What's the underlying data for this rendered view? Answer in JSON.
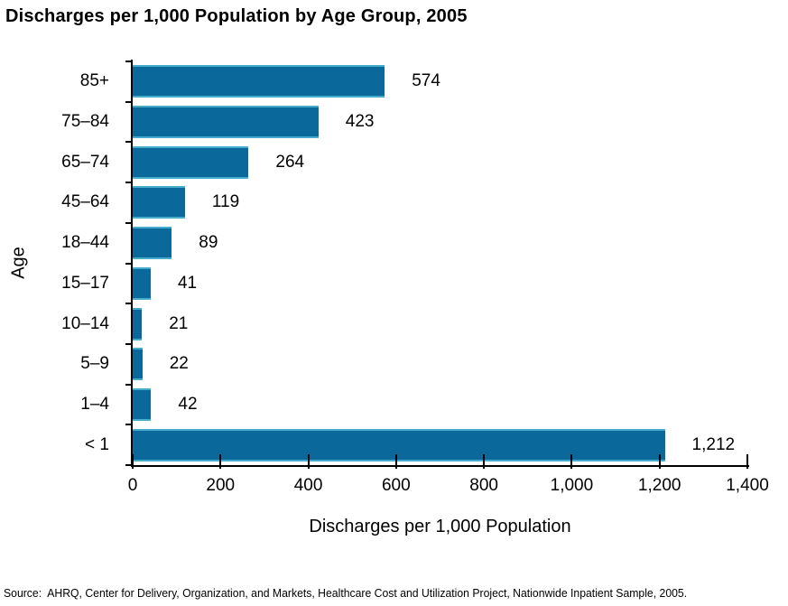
{
  "title": "Discharges per 1,000 Population by Age Group, 2005",
  "chart_data": {
    "type": "bar",
    "orientation": "horizontal",
    "title": "Discharges per 1,000 Population by Age Group, 2005",
    "categories": [
      "85+",
      "75–84",
      "65–74",
      "45–64",
      "18–44",
      "15–17",
      "10–14",
      "5–9",
      "1–4",
      "< 1"
    ],
    "values": [
      574,
      423,
      264,
      119,
      89,
      41,
      21,
      22,
      42,
      1212
    ],
    "value_labels": [
      "574",
      "423",
      "264",
      "119",
      "89",
      "41",
      "21",
      "22",
      "42",
      "1,212"
    ],
    "xlabel": "Discharges per 1,000 Population",
    "ylabel": "Age",
    "xlim": [
      0,
      1400
    ],
    "xticks": [
      0,
      200,
      400,
      600,
      800,
      1000,
      1200,
      1400
    ],
    "xtick_labels": [
      "0",
      "200",
      "400",
      "600",
      "800",
      "1,000",
      "1,200",
      "1,400"
    ],
    "grid": false,
    "legend": false,
    "bar_color": "#0B689B",
    "bar_edge_color": "#45ADCB",
    "axis_color": "#000000"
  },
  "source": "Source:  AHRQ, Center for Delivery, Organization, and Markets, Healthcare Cost and Utilization Project, Nationwide Inpatient Sample, 2005."
}
